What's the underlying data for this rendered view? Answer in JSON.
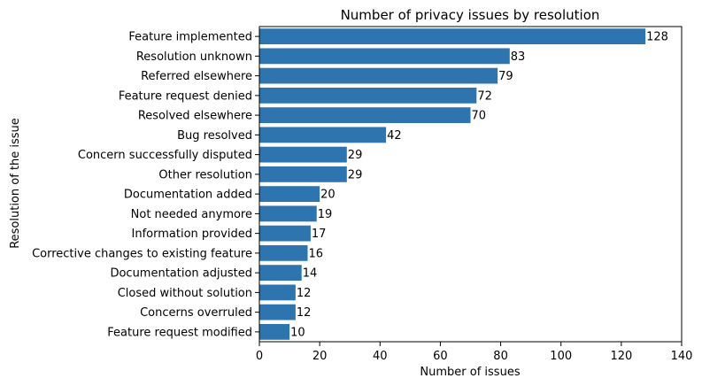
{
  "chart_data": {
    "type": "bar",
    "orientation": "horizontal",
    "title": "Number of privacy issues by resolution",
    "xlabel": "Number of issues",
    "ylabel": "Resolution of the issue",
    "xlim": [
      0,
      140
    ],
    "xticks": [
      0,
      20,
      40,
      60,
      80,
      100,
      120,
      140
    ],
    "grid": false,
    "bar_color": "#2e75b0",
    "categories": [
      "Feature implemented",
      "Resolution unknown",
      "Referred elsewhere",
      "Feature request denied",
      "Resolved elsewhere",
      "Bug resolved",
      "Concern successfully disputed",
      "Other resolution",
      "Documentation added",
      "Not needed anymore",
      "Information provided",
      "Corrective changes to existing feature",
      "Documentation adjusted",
      "Closed without solution",
      "Concerns overruled",
      "Feature request modified"
    ],
    "values": [
      128,
      83,
      79,
      72,
      70,
      42,
      29,
      29,
      20,
      19,
      17,
      16,
      14,
      12,
      12,
      10
    ]
  }
}
